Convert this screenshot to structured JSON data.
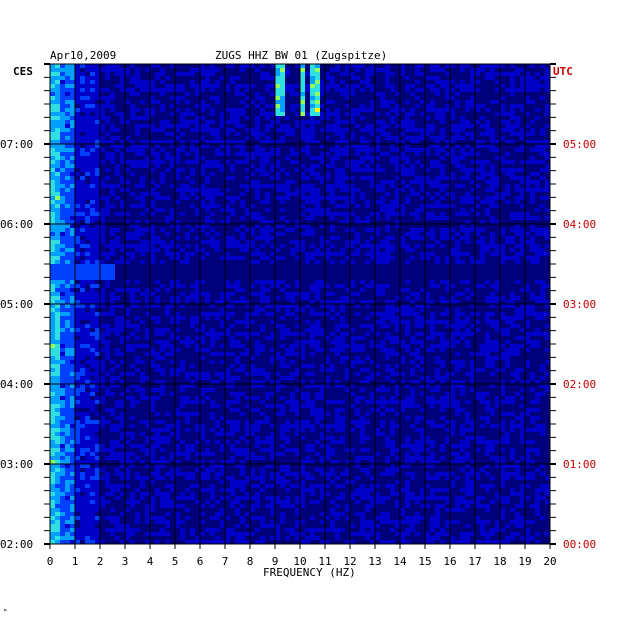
{
  "header": {
    "date": "Apr10,2009",
    "station": "ZUGS HHZ BW 01 (Zugspitze)",
    "left_tz": "CES",
    "right_tz": "UTC"
  },
  "chart_data": {
    "type": "heatmap",
    "title": "ZUGS HHZ BW 01 (Zugspitze)",
    "xlabel": "FREQUENCY (HZ)",
    "xlim": [
      0,
      20
    ],
    "x_ticks": [
      "0",
      "1",
      "2",
      "3",
      "4",
      "5",
      "6",
      "7",
      "8",
      "9",
      "10",
      "11",
      "12",
      "13",
      "14",
      "15",
      "16",
      "17",
      "18",
      "19",
      "20"
    ],
    "left_ticks": [
      "07:00",
      "06:00",
      "05:00",
      "04:00",
      "03:00",
      "02:00"
    ],
    "right_ticks": [
      "05:00",
      "04:00",
      "03:00",
      "02:00",
      "01:00",
      "00:00"
    ],
    "ylim_left": [
      "02:00",
      "07:40"
    ],
    "colormap": [
      "#00007a",
      "#0000c8",
      "#0040ff",
      "#00a0ff",
      "#30e0e0",
      "#90ff60",
      "#ffff00",
      "#ff8000",
      "#e00000"
    ],
    "features": [
      {
        "name": "low-frequency band",
        "freq_hz": [
          0,
          1
        ]
      },
      {
        "name": "gap",
        "time": "05:25"
      },
      {
        "name": "strong lines",
        "freq_hz": [
          9,
          10.5
        ],
        "time": "07:10-07:40"
      }
    ],
    "grid": true
  },
  "footer": {
    "mark": "ᴹ"
  }
}
